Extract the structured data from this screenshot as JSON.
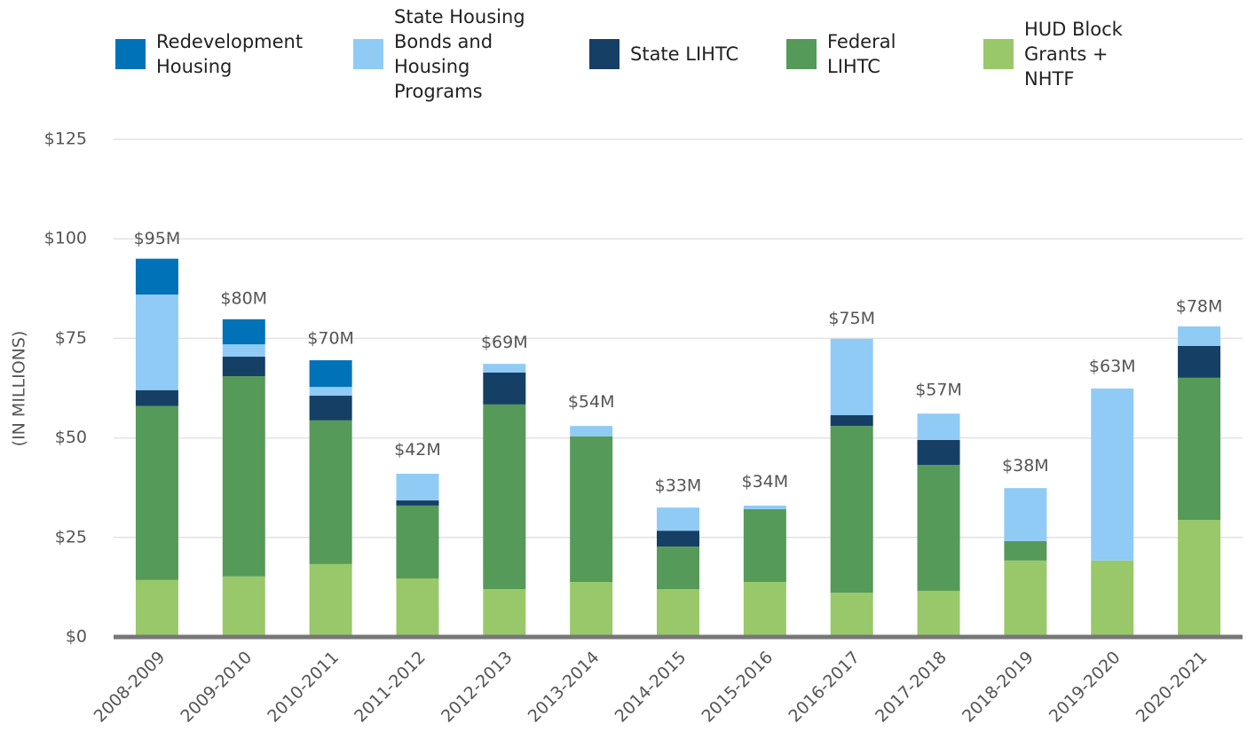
{
  "chart_data": {
    "type": "stacked_bar",
    "y_axis_label": "(IN MILLIONS)",
    "categories": [
      "2008-2009",
      "2009-2010",
      "2010-2011",
      "2011-2012",
      "2012-2013",
      "2013-2014",
      "2014-2015",
      "2015-2016",
      "2016-2017",
      "2017-2018",
      "2018-2019",
      "2019-2020",
      "2020-2021"
    ],
    "series": [
      {
        "name": "Redevelopment Housing",
        "color": "#0072b8",
        "values": [
          9.0,
          6.3,
          6.7,
          0,
          0,
          0,
          0,
          0,
          0,
          0,
          0,
          0,
          0
        ]
      },
      {
        "name": "State Housing Bonds and Housing Programs",
        "color": "#90cbf5",
        "values": [
          24.0,
          3.1,
          2.2,
          6.7,
          2.2,
          2.6,
          5.8,
          0.9,
          19.2,
          6.6,
          13.3,
          43.2,
          4.9
        ]
      },
      {
        "name": "State LIHTC",
        "color": "#163f66",
        "values": [
          4.0,
          4.9,
          6.2,
          1.3,
          8.0,
          0,
          4.0,
          0,
          2.7,
          6.3,
          0,
          0,
          8.0
        ]
      },
      {
        "name": "Federal LIHTC",
        "color": "#559a58",
        "values": [
          43.7,
          50.3,
          36.1,
          18.3,
          46.4,
          36.6,
          10.7,
          18.3,
          41.9,
          31.6,
          4.9,
          0,
          35.7
        ]
      },
      {
        "name": "HUD Block Grants + NHTF",
        "color": "#99c86a",
        "values": [
          14.3,
          15.2,
          18.3,
          14.7,
          12.0,
          13.8,
          12.0,
          13.8,
          11.1,
          11.6,
          19.2,
          19.2,
          29.4
        ]
      }
    ],
    "totals": {
      "values": [
        95,
        80,
        70,
        42,
        69,
        54,
        33,
        34,
        75,
        57,
        38,
        63,
        78
      ],
      "value_labels": [
        "$95M",
        "$80M",
        "$70M",
        "$42M",
        "$69M",
        "$54M",
        "$33M",
        "$34M",
        "$75M",
        "$57M",
        "$38M",
        "$63M",
        "$78M"
      ]
    },
    "ylim": [
      0,
      125
    ],
    "yticks": [
      {
        "value": 0,
        "label": "$0"
      },
      {
        "value": 25,
        "label": "$25"
      },
      {
        "value": 50,
        "label": "$50"
      },
      {
        "value": 75,
        "label": "$75"
      },
      {
        "value": 100,
        "label": "$100"
      },
      {
        "value": 125,
        "label": "$125"
      }
    ],
    "grid": true
  }
}
